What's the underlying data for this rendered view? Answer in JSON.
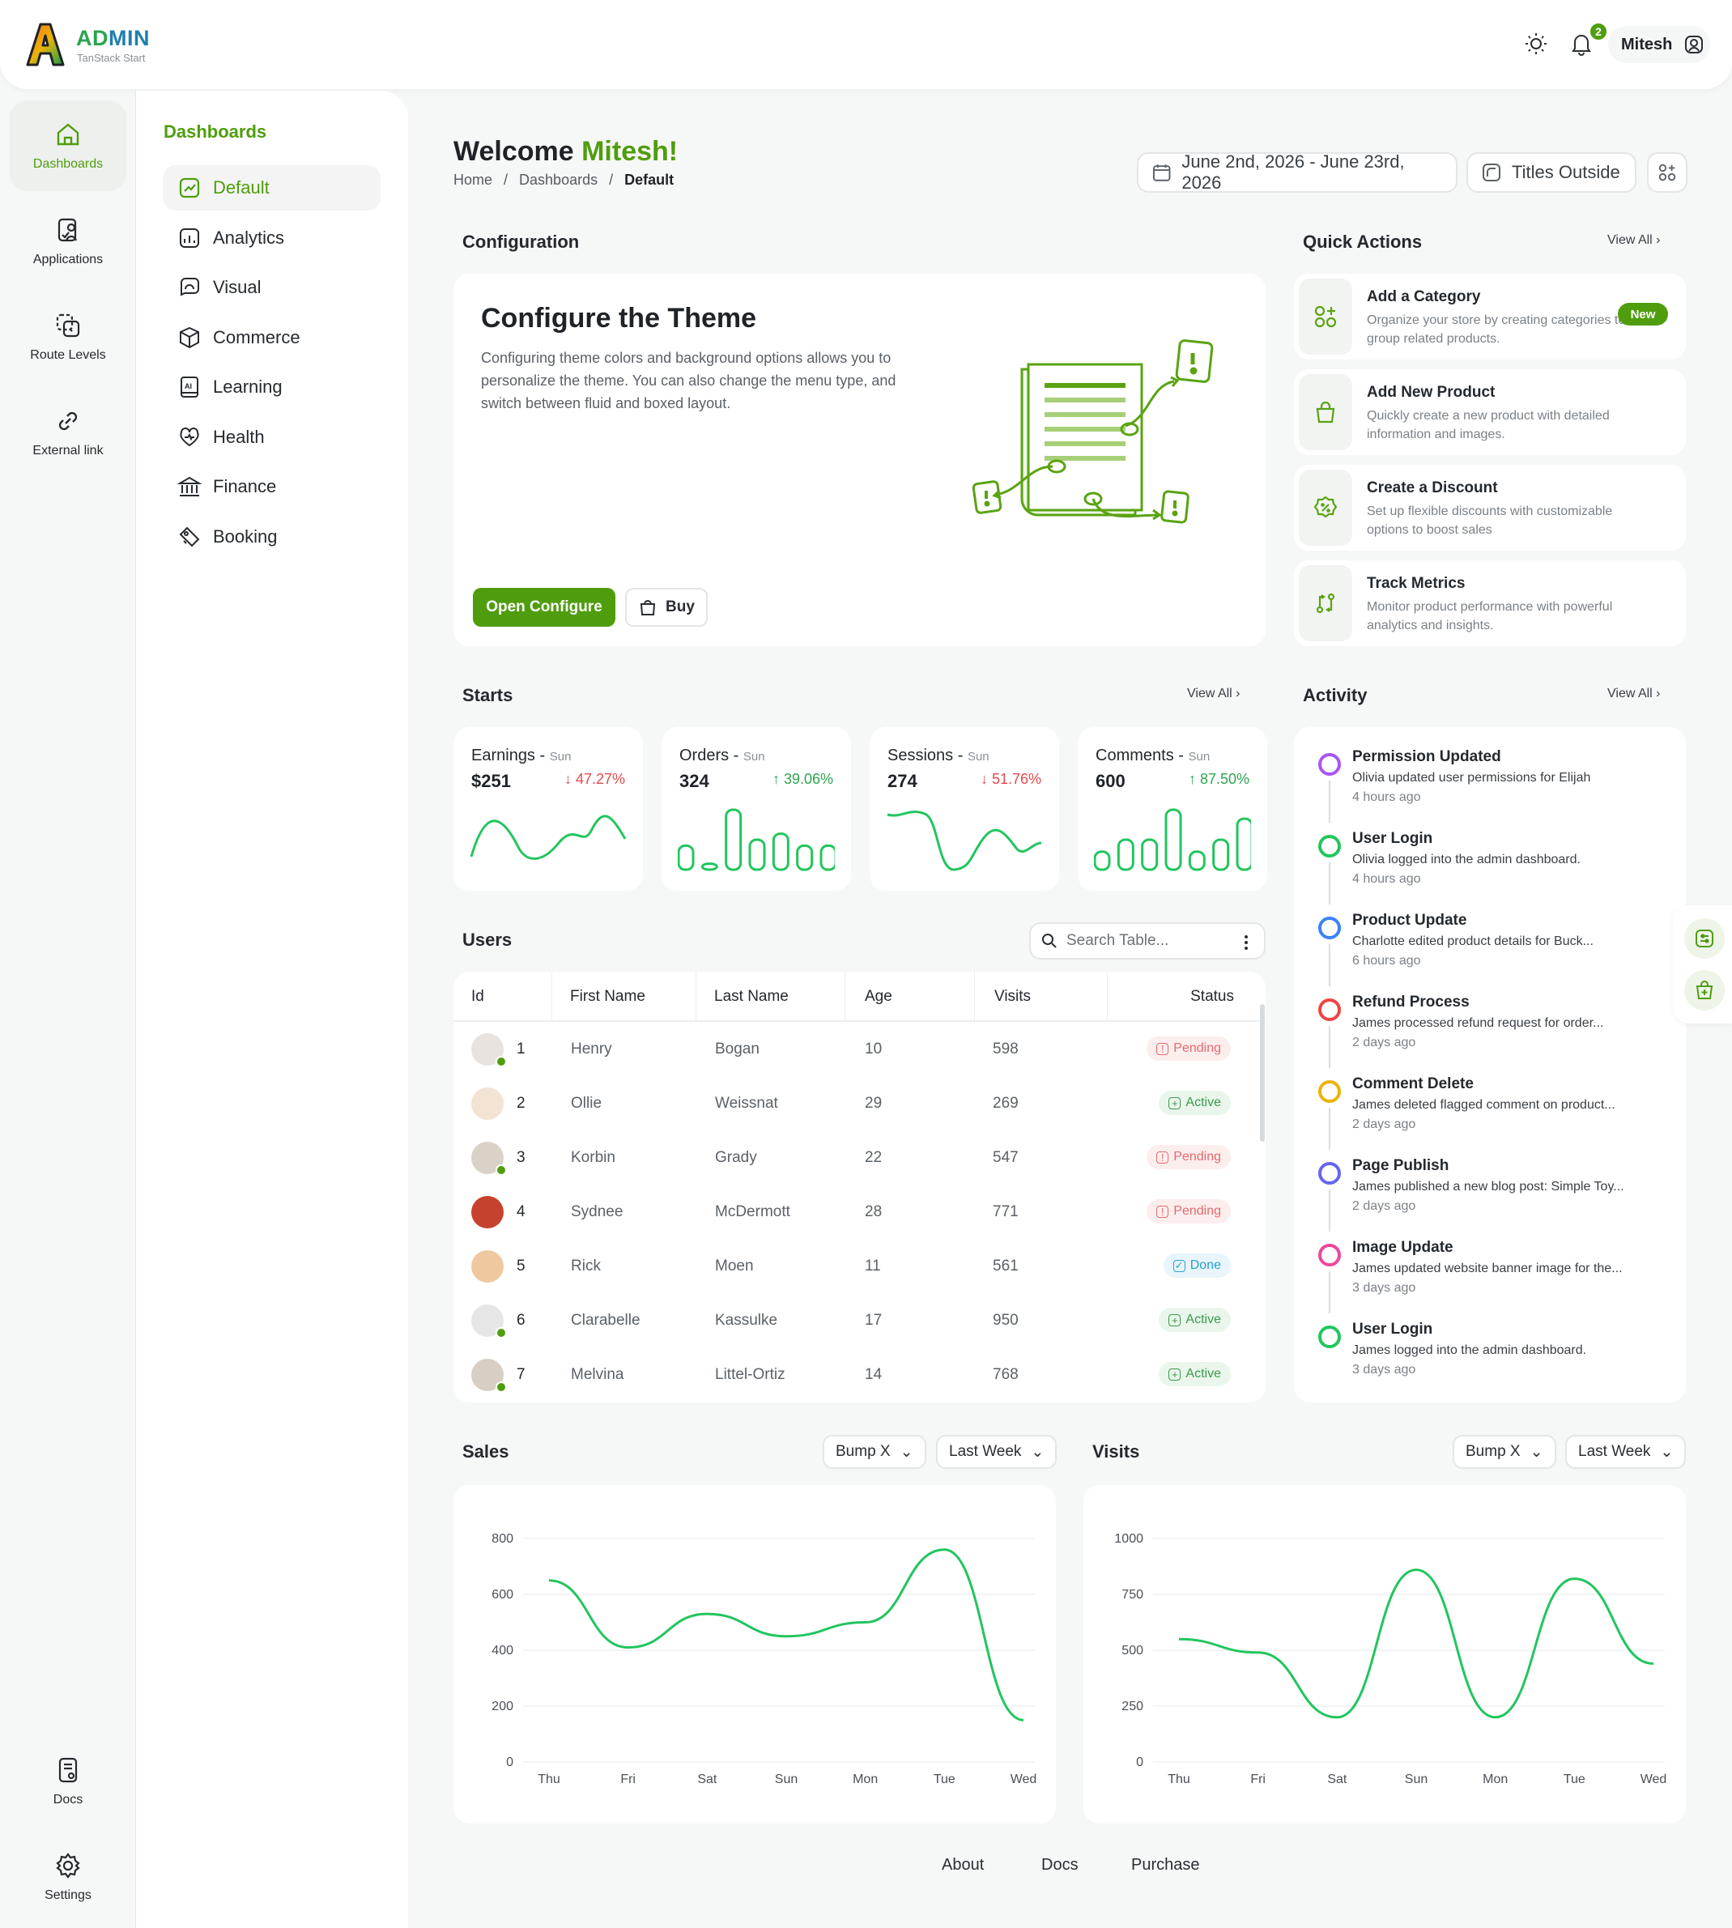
{
  "app": {
    "logo_title_a": "AD",
    "logo_title_b": "MIN",
    "logo_sub": "TanStack Start"
  },
  "topbar": {
    "notification_count": "2",
    "user_name": "Mitesh"
  },
  "rail": {
    "items": [
      {
        "label": "Dashboards",
        "icon": "home-icon"
      },
      {
        "label": "Applications",
        "icon": "applications-icon"
      },
      {
        "label": "Route Levels",
        "icon": "route-levels-icon"
      },
      {
        "label": "External link",
        "icon": "link-icon"
      }
    ],
    "bottom": [
      {
        "label": "Docs",
        "icon": "docs-icon"
      },
      {
        "label": "Settings",
        "icon": "gear-icon"
      }
    ]
  },
  "subnav": {
    "title": "Dashboards",
    "items": [
      {
        "label": "Default",
        "icon": "default-icon"
      },
      {
        "label": "Analytics",
        "icon": "analytics-icon"
      },
      {
        "label": "Visual",
        "icon": "visual-icon"
      },
      {
        "label": "Commerce",
        "icon": "commerce-icon"
      },
      {
        "label": "Learning",
        "icon": "learning-icon"
      },
      {
        "label": "Health",
        "icon": "health-icon"
      },
      {
        "label": "Finance",
        "icon": "finance-icon"
      },
      {
        "label": "Booking",
        "icon": "booking-icon"
      }
    ]
  },
  "header": {
    "welcome": "Welcome ",
    "name": "Mitesh!",
    "breadcrumb": [
      "Home",
      "/",
      "Dashboards",
      "/",
      "Default"
    ],
    "date_range": "June 2nd, 2026 - June 23rd, 2026",
    "titles_button": "Titles Outside"
  },
  "configuration": {
    "section_title": "Configuration",
    "heading": "Configure the Theme",
    "text": "Configuring theme colors and background options allows you to personalize the theme. You can also change the menu type, and switch between fluid and boxed layout.",
    "open_button": "Open Configure",
    "buy_button": "Buy"
  },
  "quick_actions": {
    "title": "Quick Actions",
    "view_all": "View All",
    "items": [
      {
        "title": "Add a Category",
        "desc": "Organize your store by creating categories to group related products.",
        "badge": "New"
      },
      {
        "title": "Add New Product",
        "desc": "Quickly create a new product with detailed information and images."
      },
      {
        "title": "Create a Discount",
        "desc": "Set up flexible discounts with customizable options to boost sales"
      },
      {
        "title": "Track Metrics",
        "desc": "Monitor product performance with powerful analytics and insights."
      }
    ]
  },
  "stats": {
    "title": "Starts",
    "view_all": "View All",
    "cards": [
      {
        "label": "Earnings - ",
        "day": "Sun",
        "value": "$251",
        "change": "↓ 47.27%",
        "dir": "down",
        "kind": "line"
      },
      {
        "label": "Orders - ",
        "day": "Sun",
        "value": "324",
        "change": "↑ 39.06%",
        "dir": "up",
        "kind": "bars",
        "bars": [
          0.4,
          0.1,
          1.0,
          0.5,
          0.6,
          0.4,
          0.4
        ]
      },
      {
        "label": "Sessions - ",
        "day": "Sun",
        "value": "274",
        "change": "↓ 51.76%",
        "dir": "down",
        "kind": "line"
      },
      {
        "label": "Comments - ",
        "day": "Sun",
        "value": "600",
        "change": "↑ 87.50%",
        "dir": "up",
        "kind": "bars",
        "bars": [
          0.3,
          0.5,
          0.5,
          1.0,
          0.3,
          0.5,
          0.85
        ]
      }
    ]
  },
  "users": {
    "title": "Users",
    "search_placeholder": "Search Table...",
    "columns": [
      "Id",
      "First Name",
      "Last Name",
      "Age",
      "Visits",
      "Status"
    ],
    "rows": [
      {
        "id": "1",
        "first": "Henry",
        "last": "Bogan",
        "age": "10",
        "visits": "598",
        "status": "Pending",
        "online": true
      },
      {
        "id": "2",
        "first": "Ollie",
        "last": "Weissnat",
        "age": "29",
        "visits": "269",
        "status": "Active",
        "online": false
      },
      {
        "id": "3",
        "first": "Korbin",
        "last": "Grady",
        "age": "22",
        "visits": "547",
        "status": "Pending",
        "online": true
      },
      {
        "id": "4",
        "first": "Sydnee",
        "last": "McDermott",
        "age": "28",
        "visits": "771",
        "status": "Pending",
        "online": false
      },
      {
        "id": "5",
        "first": "Rick",
        "last": "Moen",
        "age": "11",
        "visits": "561",
        "status": "Done",
        "online": false
      },
      {
        "id": "6",
        "first": "Clarabelle",
        "last": "Kassulke",
        "age": "17",
        "visits": "950",
        "status": "Active",
        "online": true
      },
      {
        "id": "7",
        "first": "Melvina",
        "last": "Littel-Ortiz",
        "age": "14",
        "visits": "768",
        "status": "Active",
        "online": true
      }
    ]
  },
  "activity": {
    "title": "Activity",
    "view_all": "View All",
    "items": [
      {
        "title": "Permission Updated",
        "desc": "Olivia updated user permissions for Elijah",
        "time": "4 hours ago",
        "color": "#a855f7"
      },
      {
        "title": "User Login",
        "desc": "Olivia logged into the admin dashboard.",
        "time": "4 hours ago",
        "color": "#22c55e"
      },
      {
        "title": "Product Update",
        "desc": "Charlotte edited product details for Buck...",
        "time": "6 hours ago",
        "color": "#3b82f6"
      },
      {
        "title": "Refund Process",
        "desc": "James processed refund request for order...",
        "time": "2 days ago",
        "color": "#ef4444"
      },
      {
        "title": "Comment Delete",
        "desc": "James deleted flagged comment on product...",
        "time": "2 days ago",
        "color": "#eab308"
      },
      {
        "title": "Page Publish",
        "desc": "James published a new blog post: Simple Toy...",
        "time": "2 days ago",
        "color": "#6366f1"
      },
      {
        "title": "Image Update",
        "desc": "James updated website banner image for the...",
        "time": "3 days ago",
        "color": "#ec4899"
      },
      {
        "title": "User Login",
        "desc": "James logged into the admin dashboard.",
        "time": "3 days ago",
        "color": "#22c55e"
      }
    ]
  },
  "chart_data": [
    {
      "type": "line",
      "title": "Sales",
      "curve_select": "Bump X",
      "range_select": "Last Week",
      "categories": [
        "Thu",
        "Fri",
        "Sat",
        "Sun",
        "Mon",
        "Tue",
        "Wed"
      ],
      "values": [
        650,
        410,
        530,
        450,
        500,
        760,
        150
      ],
      "ylim": [
        0,
        800
      ],
      "yticks": [
        "0",
        "200",
        "400",
        "600",
        "800"
      ],
      "color": "#22c55e",
      "grid": true
    },
    {
      "type": "line",
      "title": "Visits",
      "curve_select": "Bump X",
      "range_select": "Last Week",
      "categories": [
        "Thu",
        "Fri",
        "Sat",
        "Sun",
        "Mon",
        "Tue",
        "Wed"
      ],
      "values": [
        550,
        490,
        200,
        860,
        200,
        820,
        440
      ],
      "ylim": [
        0,
        1000
      ],
      "yticks": [
        "0",
        "250",
        "500",
        "750",
        "1000"
      ],
      "color": "#22c55e",
      "grid": true
    }
  ],
  "footer": {
    "links": [
      "About",
      "Docs",
      "Purchase"
    ]
  }
}
